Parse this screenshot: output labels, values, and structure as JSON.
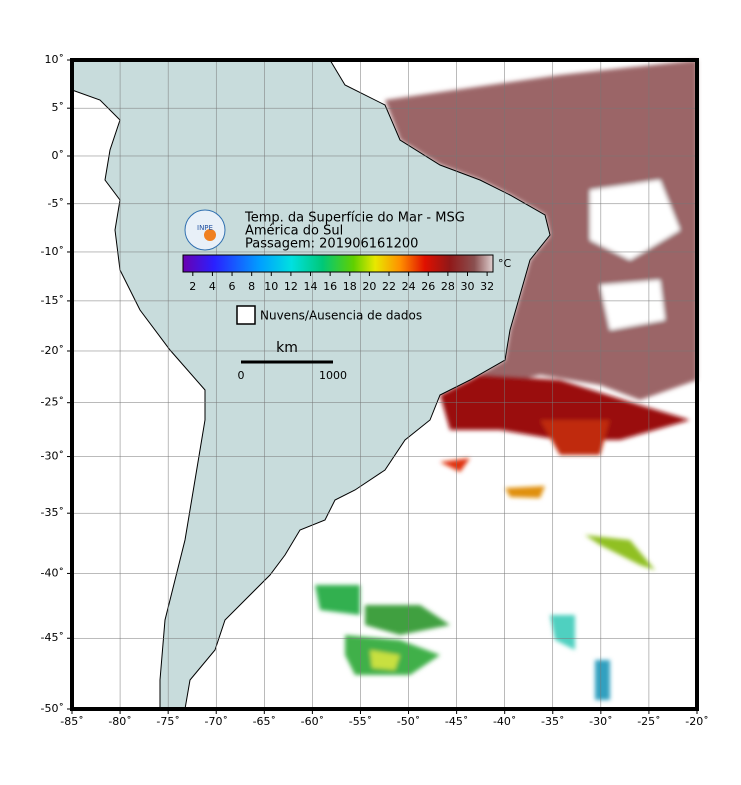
{
  "header": {
    "title": "Temp. da Superfície do Mar - MSG",
    "region": "América do Sul",
    "pass": "Passagem: 201906161200",
    "logo": "INPE"
  },
  "map": {
    "xlim": [
      -85,
      -20
    ],
    "ylim": [
      -50,
      10
    ],
    "xticks": [
      {
        "value": -85,
        "label": "-85˚"
      },
      {
        "value": -80,
        "label": "-80˚"
      },
      {
        "value": -75,
        "label": "-75˚"
      },
      {
        "value": -70,
        "label": "-70˚"
      },
      {
        "value": -65,
        "label": "-65˚"
      },
      {
        "value": -60,
        "label": "-60˚"
      },
      {
        "value": -55,
        "label": "-55˚"
      },
      {
        "value": -50,
        "label": "-50˚"
      },
      {
        "value": -45,
        "label": "-45˚"
      },
      {
        "value": -40,
        "label": "-40˚"
      },
      {
        "value": -35,
        "label": "-35˚"
      },
      {
        "value": -30,
        "label": "-30˚"
      },
      {
        "value": -25,
        "label": "-25˚"
      },
      {
        "value": -20,
        "label": "-20˚"
      }
    ],
    "yticks": [
      {
        "value": 10,
        "label": "10˚"
      },
      {
        "value": 5,
        "label": "5˚"
      },
      {
        "value": 0,
        "label": "0˚"
      },
      {
        "value": -5,
        "label": "-5˚"
      },
      {
        "value": -10,
        "label": "-10˚"
      },
      {
        "value": -15,
        "label": "-15˚"
      },
      {
        "value": -20,
        "label": "-20˚"
      },
      {
        "value": -25,
        "label": "-25˚"
      },
      {
        "value": -30,
        "label": "-30˚"
      },
      {
        "value": -35,
        "label": "-35˚"
      },
      {
        "value": -40,
        "label": "-40˚"
      },
      {
        "value": -45,
        "label": "-45˚"
      },
      {
        "value": -50,
        "label": "-50˚"
      }
    ]
  },
  "colorbar": {
    "lim": [
      1,
      32.6
    ],
    "ticks": [
      2,
      4,
      6,
      8,
      10,
      12,
      14,
      16,
      18,
      20,
      22,
      24,
      26,
      28,
      30,
      32
    ],
    "unit": "°C"
  },
  "legend": {
    "label": "Nuvens/Ausencia de dados"
  },
  "scale": {
    "unit": "km",
    "start": "0",
    "end": "1000"
  }
}
